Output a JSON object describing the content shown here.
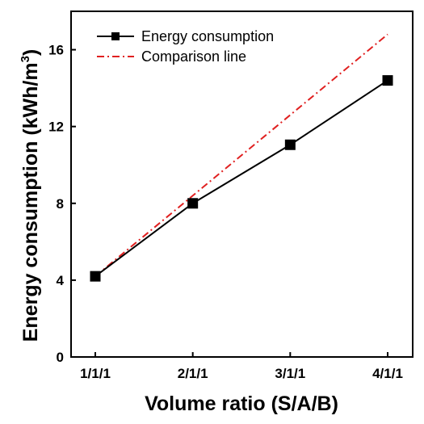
{
  "chart_data": {
    "type": "line",
    "xlabel": "Volume ratio (S/A/B)",
    "ylabel": "Energy consumption (kWh/m",
    "ylabel_sup": "3",
    "ylabel_close": ")",
    "categories": [
      "1/1/1",
      "2/1/1",
      "3/1/1",
      "4/1/1"
    ],
    "ylim": [
      0,
      18
    ],
    "yticks": [
      0,
      4,
      8,
      12,
      16
    ],
    "ytick_labels": [
      "0",
      "4",
      "8",
      "12",
      "16"
    ],
    "grid": false,
    "legend_position": "top-left",
    "series": [
      {
        "name": "Energy consumption",
        "values": [
          4.2,
          8.0,
          11.05,
          14.4
        ],
        "color": "#000000",
        "style": "solid",
        "marker": "square"
      },
      {
        "name": "Comparison line",
        "values": [
          4.2,
          8.4,
          12.6,
          16.8
        ],
        "color": "#e02020",
        "style": "dash-dot",
        "marker": "none"
      }
    ]
  }
}
